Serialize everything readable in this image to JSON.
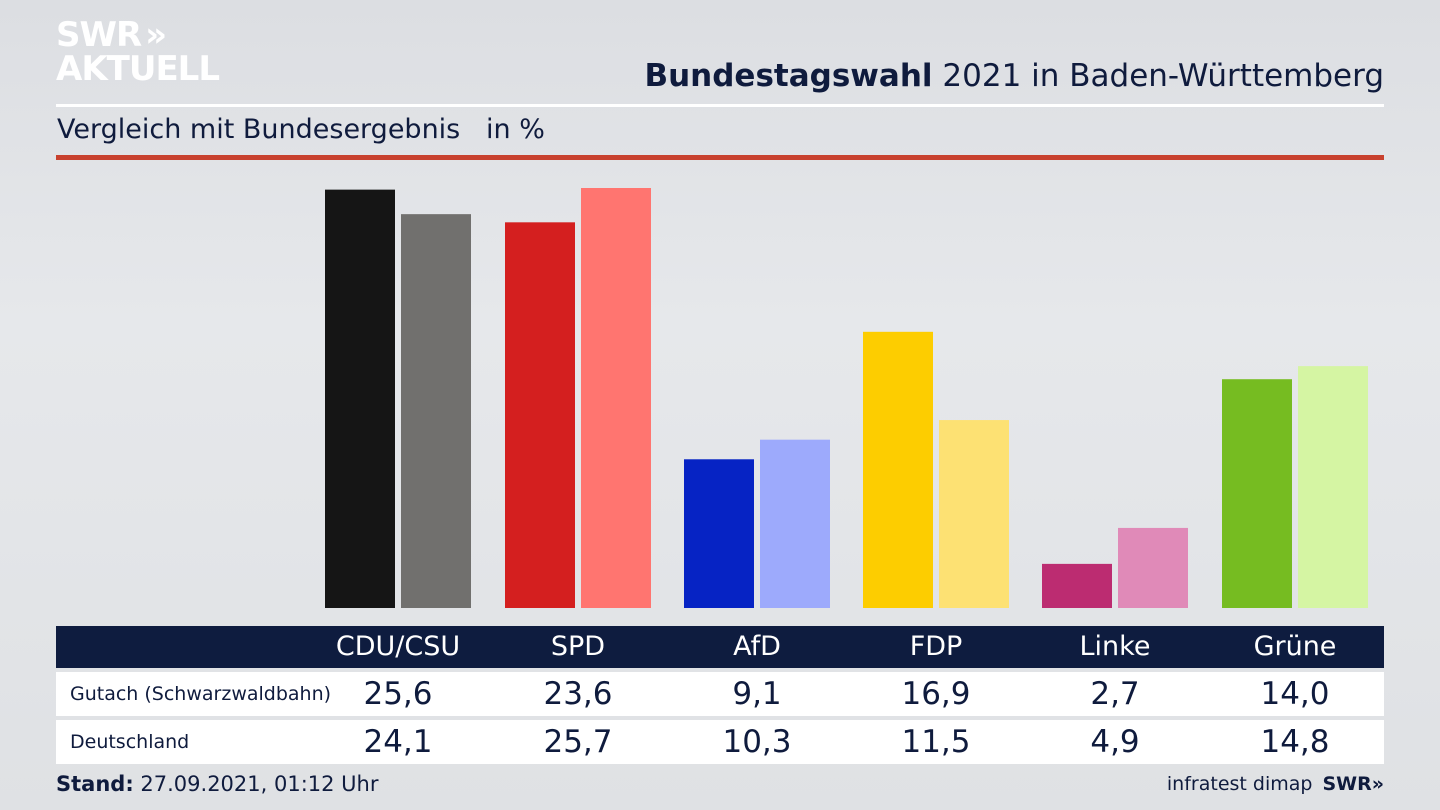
{
  "logo": {
    "line1": "SWR",
    "chevrons": "»",
    "line2": "AKTUELL"
  },
  "header": {
    "title_bold": "Bundestagswahl",
    "title_rest": " 2021 in Baden-Württemberg",
    "subtitle": "Vergleich mit Bundesergebnis   in %"
  },
  "chart_data": {
    "type": "bar",
    "categories": [
      "CDU/CSU",
      "SPD",
      "AfD",
      "FDP",
      "Linke",
      "Grüne"
    ],
    "series": [
      {
        "name": "Gutach (Schwarzwaldbahn)",
        "values": [
          25.6,
          23.6,
          9.1,
          16.9,
          2.7,
          14.0
        ]
      },
      {
        "name": "Deutschland",
        "values": [
          24.1,
          25.7,
          10.3,
          11.5,
          4.9,
          14.8
        ]
      }
    ],
    "colors": {
      "local": [
        "#151515",
        "#d41f1f",
        "#0623c4",
        "#fdcd00",
        "#bc2c71",
        "#76bc21"
      ],
      "national": [
        "#71706e",
        "#ff7570",
        "#9daafc",
        "#fde173",
        "#e08ab8",
        "#d5f5a3"
      ]
    },
    "ylabel": "in %",
    "ylim": [
      0,
      26
    ],
    "grid": false,
    "legend": "table-below"
  },
  "table": {
    "headers": [
      "CDU/CSU",
      "SPD",
      "AfD",
      "FDP",
      "Linke",
      "Grüne"
    ],
    "rows": [
      {
        "label": "Gutach (Schwarzwaldbahn)",
        "values": [
          "25,6",
          "23,6",
          "9,1",
          "16,9",
          "2,7",
          "14,0"
        ]
      },
      {
        "label": "Deutschland",
        "values": [
          "24,1",
          "25,7",
          "10,3",
          "11,5",
          "4,9",
          "14,8"
        ]
      }
    ]
  },
  "footer": {
    "stand_label": "Stand:",
    "stand_value": " 27.09.2021, 01:12 Uhr",
    "source": "infratest dimap",
    "brand": "SWR»"
  }
}
